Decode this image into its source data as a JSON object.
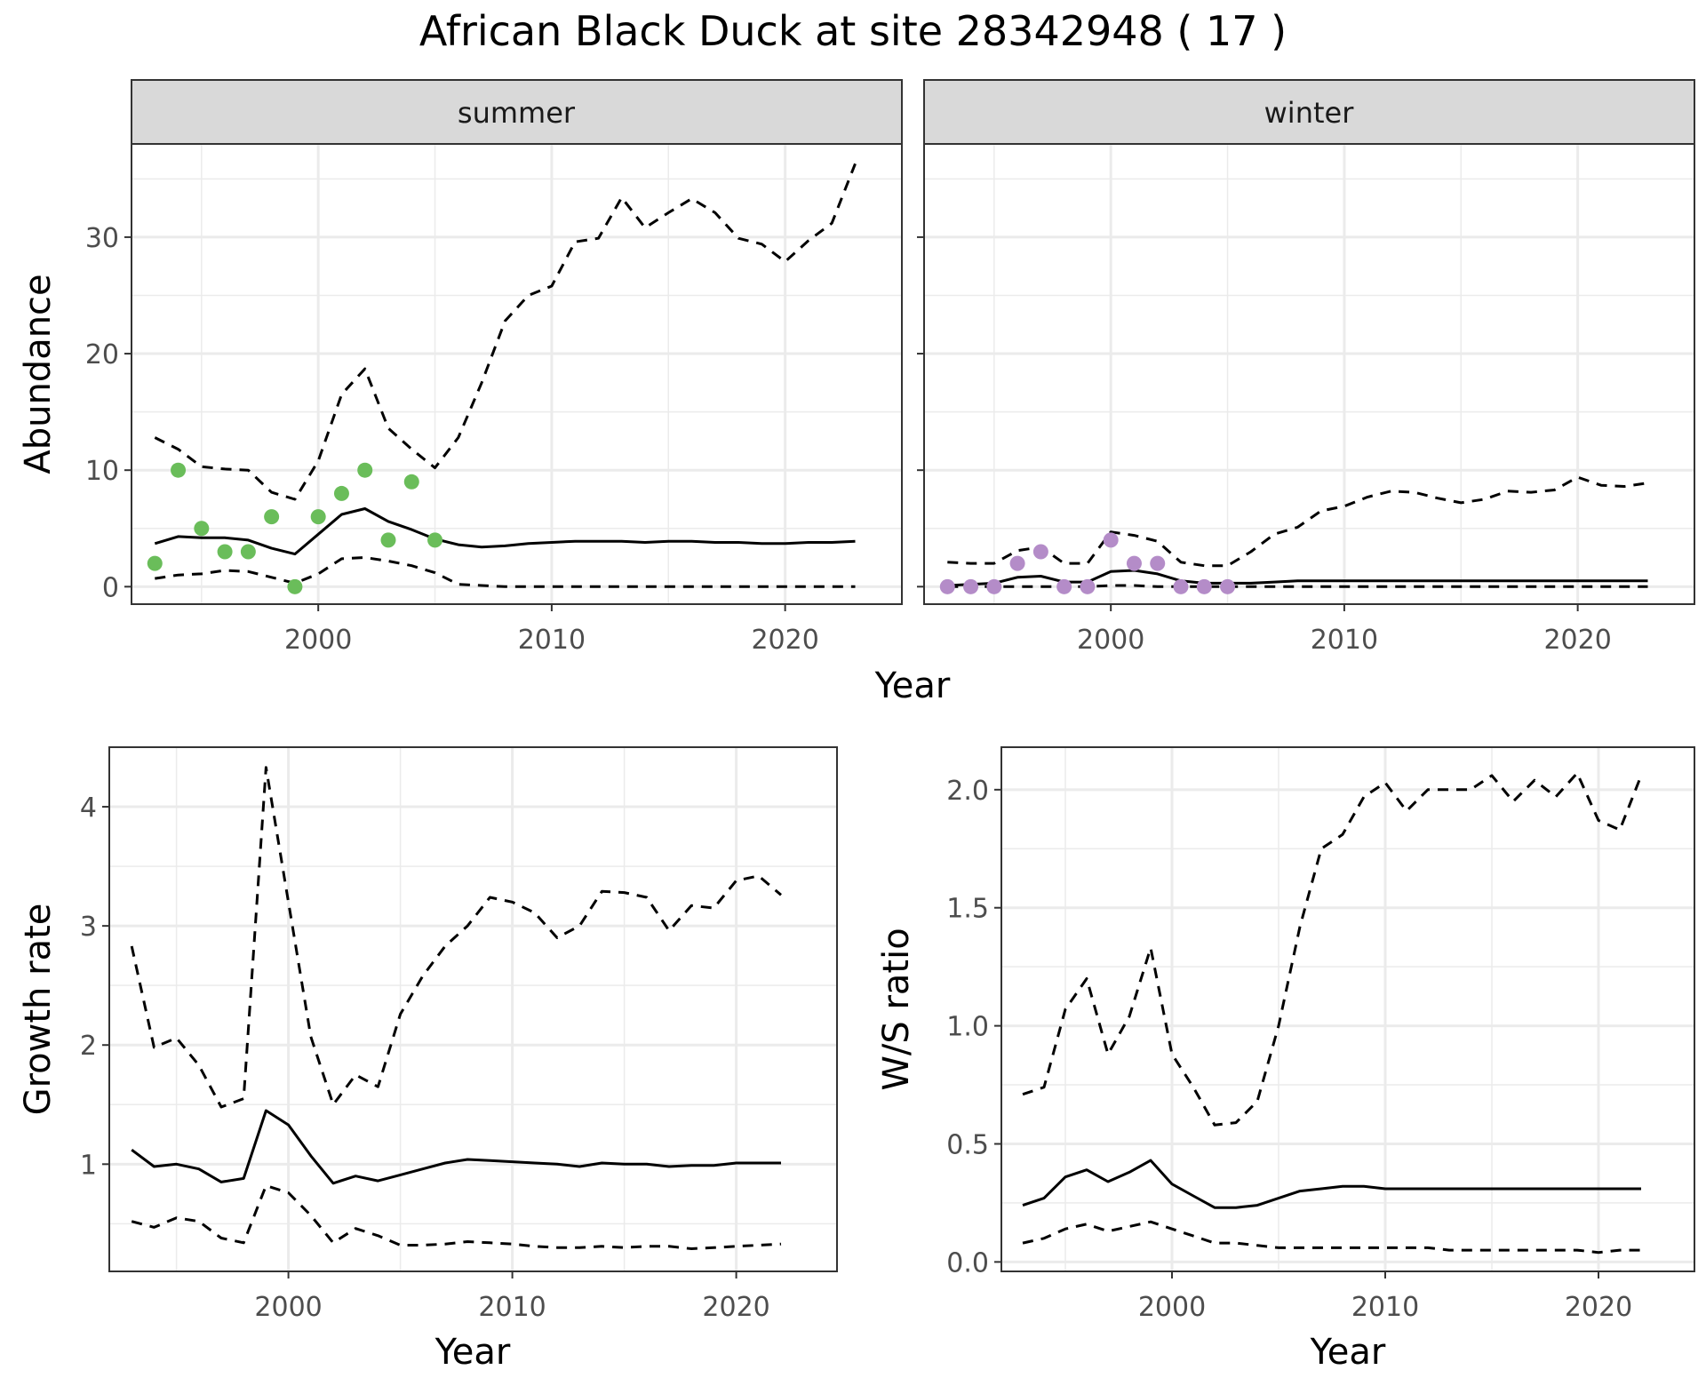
{
  "title": "African Black Duck at site 28342948 ( 17 )",
  "colors": {
    "summer_points": "#6ABD5A",
    "winter_points": "#B48CC8",
    "line": "#000000",
    "strip": "#D9D9D9",
    "grid": "#EBEBEB"
  },
  "chart_data": [
    {
      "type": "line",
      "panel": "summer",
      "xlabel": "Year",
      "ylabel": "Abundance",
      "xlim": [
        1992,
        2025
      ],
      "ylim": [
        -1.5,
        38
      ],
      "x_ticks": [
        2000,
        2010,
        2020
      ],
      "y_ticks": [
        0,
        10,
        20,
        30
      ],
      "grid": true,
      "points": {
        "x": [
          1993,
          1994,
          1995,
          1996,
          1997,
          1998,
          1999,
          2000,
          2001,
          2002,
          2003,
          2004,
          2005
        ],
        "y": [
          2,
          10,
          5,
          3,
          3,
          6,
          0,
          6,
          8,
          10,
          4,
          9,
          4
        ]
      },
      "x": [
        1993,
        1994,
        1995,
        1996,
        1997,
        1998,
        1999,
        2000,
        2001,
        2002,
        2003,
        2004,
        2005,
        2006,
        2007,
        2008,
        2009,
        2010,
        2011,
        2012,
        2013,
        2014,
        2015,
        2016,
        2017,
        2018,
        2019,
        2020,
        2021,
        2022,
        2023
      ],
      "series": [
        {
          "role": "estimate",
          "style": "solid",
          "values": [
            3.7,
            4.3,
            4.2,
            4.2,
            4.0,
            3.3,
            2.8,
            4.5,
            6.2,
            6.7,
            5.6,
            4.9,
            4.1,
            3.6,
            3.4,
            3.5,
            3.7,
            3.8,
            3.9,
            3.9,
            3.9,
            3.8,
            3.9,
            3.9,
            3.8,
            3.8,
            3.7,
            3.7,
            3.8,
            3.8,
            3.9
          ]
        },
        {
          "role": "upper",
          "style": "dashed",
          "values": [
            12.8,
            11.8,
            10.3,
            10.1,
            10.0,
            8.1,
            7.5,
            10.8,
            16.5,
            18.7,
            13.6,
            11.8,
            10.2,
            12.8,
            17.5,
            22.8,
            25.0,
            25.8,
            29.6,
            29.9,
            33.4,
            30.8,
            32.1,
            33.3,
            32.1,
            29.9,
            29.4,
            27.9,
            29.7,
            31.2,
            36.3
          ]
        },
        {
          "role": "lower",
          "style": "dashed",
          "values": [
            0.7,
            1.0,
            1.1,
            1.4,
            1.3,
            0.8,
            0.3,
            1.1,
            2.4,
            2.5,
            2.2,
            1.8,
            1.2,
            0.2,
            0.1,
            0.0,
            0.0,
            0.0,
            0.0,
            0.0,
            0.0,
            0.0,
            0.0,
            0.0,
            0.0,
            0.0,
            0.0,
            0.0,
            0.0,
            0.0,
            0.0
          ]
        }
      ]
    },
    {
      "type": "line",
      "panel": "winter",
      "xlabel": "Year",
      "ylabel": "Abundance",
      "xlim": [
        1992,
        2025
      ],
      "ylim": [
        -1.5,
        38
      ],
      "x_ticks": [
        2000,
        2010,
        2020
      ],
      "y_ticks": [
        0,
        10,
        20,
        30
      ],
      "grid": true,
      "points": {
        "x": [
          1993,
          1994,
          1995,
          1996,
          1997,
          1998,
          1999,
          2000,
          2001,
          2002,
          2003,
          2004,
          2005
        ],
        "y": [
          0,
          0,
          0,
          2,
          3,
          0,
          0,
          4,
          2,
          2,
          0,
          0,
          0
        ]
      },
      "x": [
        1993,
        1994,
        1995,
        1996,
        1997,
        1998,
        1999,
        2000,
        2001,
        2002,
        2003,
        2004,
        2005,
        2006,
        2007,
        2008,
        2009,
        2010,
        2011,
        2012,
        2013,
        2014,
        2015,
        2016,
        2017,
        2018,
        2019,
        2020,
        2021,
        2022,
        2023
      ],
      "series": [
        {
          "role": "estimate",
          "style": "solid",
          "values": [
            0.1,
            0.2,
            0.3,
            0.8,
            0.9,
            0.4,
            0.4,
            1.3,
            1.4,
            1.1,
            0.5,
            0.3,
            0.3,
            0.3,
            0.4,
            0.5,
            0.5,
            0.5,
            0.5,
            0.5,
            0.5,
            0.5,
            0.5,
            0.5,
            0.5,
            0.5,
            0.5,
            0.5,
            0.5,
            0.5,
            0.5
          ]
        },
        {
          "role": "upper",
          "style": "dashed",
          "values": [
            2.1,
            2.0,
            2.0,
            3.1,
            3.4,
            2.0,
            2.0,
            4.7,
            4.4,
            3.9,
            2.1,
            1.8,
            1.8,
            3.0,
            4.5,
            5.1,
            6.5,
            6.9,
            7.7,
            8.2,
            8.1,
            7.6,
            7.2,
            7.5,
            8.2,
            8.1,
            8.3,
            9.4,
            8.7,
            8.6,
            8.9
          ]
        },
        {
          "role": "lower",
          "style": "dashed",
          "values": [
            0.0,
            0.0,
            0.0,
            0.0,
            0.0,
            0.0,
            0.0,
            0.1,
            0.1,
            0.0,
            0.0,
            0.0,
            0.0,
            0.0,
            0.0,
            0.0,
            0.0,
            0.0,
            0.0,
            0.0,
            0.0,
            0.0,
            0.0,
            0.0,
            0.0,
            0.0,
            0.0,
            0.0,
            0.0,
            0.0,
            0.0
          ]
        }
      ]
    },
    {
      "type": "line",
      "panel": "growth",
      "xlabel": "Year",
      "ylabel": "Growth rate",
      "xlim": [
        1992,
        2024.5
      ],
      "ylim": [
        0.1,
        4.5
      ],
      "x_ticks": [
        2000,
        2010,
        2020
      ],
      "y_ticks": [
        1,
        2,
        3,
        4
      ],
      "grid": true,
      "x": [
        1993,
        1994,
        1995,
        1996,
        1997,
        1998,
        1999,
        2000,
        2001,
        2002,
        2003,
        2004,
        2005,
        2006,
        2007,
        2008,
        2009,
        2010,
        2011,
        2012,
        2013,
        2014,
        2015,
        2016,
        2017,
        2018,
        2019,
        2020,
        2021,
        2022
      ],
      "series": [
        {
          "role": "estimate",
          "style": "solid",
          "values": [
            1.12,
            0.98,
            1.0,
            0.96,
            0.85,
            0.88,
            1.45,
            1.33,
            1.07,
            0.84,
            0.9,
            0.86,
            0.91,
            0.96,
            1.01,
            1.04,
            1.03,
            1.02,
            1.01,
            1.0,
            0.98,
            1.01,
            1.0,
            1.0,
            0.98,
            0.99,
            0.99,
            1.01,
            1.01,
            1.01
          ]
        },
        {
          "role": "upper",
          "style": "dashed",
          "values": [
            2.83,
            1.98,
            2.06,
            1.83,
            1.48,
            1.55,
            4.33,
            3.2,
            2.07,
            1.5,
            1.75,
            1.65,
            2.26,
            2.58,
            2.83,
            3.0,
            3.24,
            3.2,
            3.11,
            2.9,
            3.0,
            3.29,
            3.28,
            3.24,
            2.96,
            3.17,
            3.15,
            3.38,
            3.42,
            3.26
          ]
        },
        {
          "role": "lower",
          "style": "dashed",
          "values": [
            0.52,
            0.47,
            0.55,
            0.52,
            0.38,
            0.34,
            0.82,
            0.76,
            0.57,
            0.34,
            0.46,
            0.4,
            0.32,
            0.32,
            0.33,
            0.35,
            0.34,
            0.33,
            0.31,
            0.3,
            0.3,
            0.31,
            0.3,
            0.31,
            0.31,
            0.29,
            0.3,
            0.31,
            0.32,
            0.33
          ]
        }
      ]
    },
    {
      "type": "line",
      "panel": "ratio",
      "xlabel": "Year",
      "ylabel": "W/S ratio",
      "xlim": [
        1992,
        2024.5
      ],
      "ylim": [
        -0.04,
        2.18
      ],
      "x_ticks": [
        2000,
        2010,
        2020
      ],
      "y_ticks": [
        0.0,
        0.5,
        1.0,
        1.5,
        2.0
      ],
      "y_tick_labels": [
        "0.0",
        "0.5",
        "1.0",
        "1.5",
        "2.0"
      ],
      "grid": true,
      "x": [
        1993,
        1994,
        1995,
        1996,
        1997,
        1998,
        1999,
        2000,
        2001,
        2002,
        2003,
        2004,
        2005,
        2006,
        2007,
        2008,
        2009,
        2010,
        2011,
        2012,
        2013,
        2014,
        2015,
        2016,
        2017,
        2018,
        2019,
        2020,
        2021,
        2022
      ],
      "series": [
        {
          "role": "estimate",
          "style": "solid",
          "values": [
            0.24,
            0.27,
            0.36,
            0.39,
            0.34,
            0.38,
            0.43,
            0.33,
            0.28,
            0.23,
            0.23,
            0.24,
            0.27,
            0.3,
            0.31,
            0.32,
            0.32,
            0.31,
            0.31,
            0.31,
            0.31,
            0.31,
            0.31,
            0.31,
            0.31,
            0.31,
            0.31,
            0.31,
            0.31,
            0.31
          ]
        },
        {
          "role": "upper",
          "style": "dashed",
          "values": [
            0.71,
            0.74,
            1.07,
            1.2,
            0.88,
            1.04,
            1.33,
            0.88,
            0.74,
            0.58,
            0.59,
            0.68,
            1.0,
            1.42,
            1.75,
            1.81,
            1.97,
            2.03,
            1.91,
            2.0,
            2.0,
            2.0,
            2.06,
            1.95,
            2.04,
            1.97,
            2.07,
            1.87,
            1.83,
            2.06
          ]
        },
        {
          "role": "lower",
          "style": "dashed",
          "values": [
            0.08,
            0.1,
            0.14,
            0.16,
            0.13,
            0.15,
            0.17,
            0.14,
            0.11,
            0.08,
            0.08,
            0.07,
            0.06,
            0.06,
            0.06,
            0.06,
            0.06,
            0.06,
            0.06,
            0.06,
            0.05,
            0.05,
            0.05,
            0.05,
            0.05,
            0.05,
            0.05,
            0.04,
            0.05,
            0.05
          ]
        }
      ]
    }
  ],
  "strips": {
    "summer": "summer",
    "winter": "winter"
  },
  "top_xlabel": "Year"
}
